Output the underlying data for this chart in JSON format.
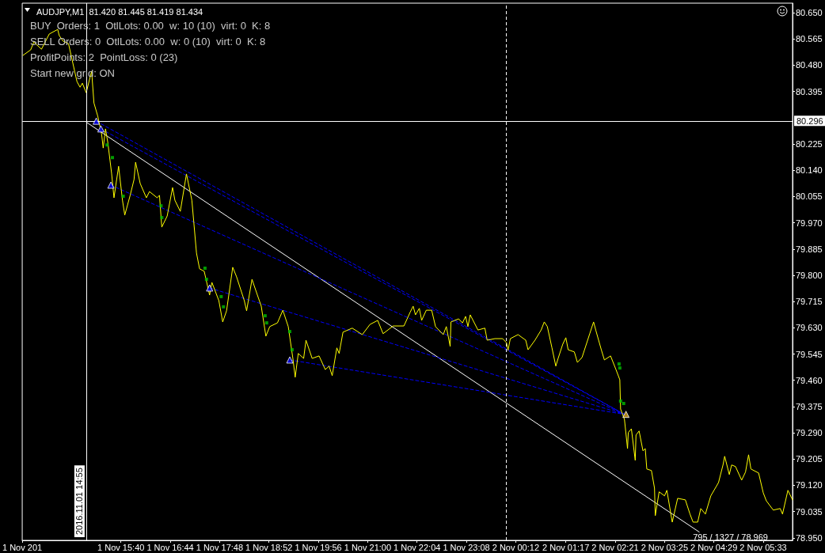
{
  "chart_data": {
    "type": "line",
    "title": "AUDJPY,M1  81.420 81.445 81.419 81.434",
    "annotations": [
      "BUY  Orders: 1  OtlLots: 0.00  w: 10 (10)  virt: 0  K: 8",
      "SELL Orders: 0  OtlLots: 0.00  w: 0 (10)  virt: 0  K: 8",
      "ProfitPoints: 2  PointLoss: 0 (23)",
      "Start new grid: ON",
      {
        "text": "795 / 1327 / 78.969",
        "x": "2016-11-02T04:10",
        "y": 78.969
      }
    ],
    "xlim": [
      "2016-11-01T13:32",
      "2016-11-02T06:11"
    ],
    "xticks": [
      {
        "value": "2016-11-01T13:32",
        "label": "1 Nov 201"
      },
      {
        "value": "2016-11-01T15:40",
        "label": "1 Nov 15:40"
      },
      {
        "value": "2016-11-01T16:44",
        "label": "1 Nov 16:44"
      },
      {
        "value": "2016-11-01T17:48",
        "label": "1 Nov 17:48"
      },
      {
        "value": "2016-11-01T18:52",
        "label": "1 Nov 18:52"
      },
      {
        "value": "2016-11-01T19:56",
        "label": "1 Nov 19:56"
      },
      {
        "value": "2016-11-01T21:00",
        "label": "1 Nov 21:00"
      },
      {
        "value": "2016-11-01T22:04",
        "label": "1 Nov 22:04"
      },
      {
        "value": "2016-11-01T23:08",
        "label": "1 Nov 23:08"
      },
      {
        "value": "2016-11-02T00:12",
        "label": "2 Nov 00:12"
      },
      {
        "value": "2016-11-02T01:17",
        "label": "2 Nov 01:17"
      },
      {
        "value": "2016-11-02T02:21",
        "label": "2 Nov 02:21"
      },
      {
        "value": "2016-11-02T03:25",
        "label": "2 Nov 03:25"
      },
      {
        "value": "2016-11-02T04:29",
        "label": "2 Nov 04:29"
      },
      {
        "value": "2016-11-02T05:33",
        "label": "2 Nov 05:33"
      }
    ],
    "ylim": [
      78.942,
      80.681
    ],
    "yticks": [
      {
        "value": 80.65,
        "label": "80.650"
      },
      80.565,
      {
        "value": 80.48,
        "label": "80.480"
      },
      80.395,
      80.225,
      {
        "value": 80.14,
        "label": "80.140"
      },
      80.055,
      {
        "value": 79.97,
        "label": "79.970"
      },
      79.885,
      {
        "value": 79.8,
        "label": "79.800"
      },
      79.715,
      {
        "value": 79.63,
        "label": "79.630"
      },
      79.545,
      {
        "value": 79.46,
        "label": "79.460"
      },
      79.375,
      {
        "value": 79.29,
        "label": "79.290"
      },
      79.205,
      {
        "value": 79.12,
        "label": "79.120"
      },
      79.035,
      {
        "value": 78.95,
        "label": "78.950"
      }
    ],
    "grid": false,
    "marker": "none",
    "line_style": "solid",
    "ref_lines": [
      {
        "axis": "x",
        "value": "2016-11-01T14:55",
        "label": "2016.11.01 14:55",
        "color": "#ffffff"
      },
      {
        "axis": "y",
        "value": 80.296,
        "label": "80.296",
        "color": "#ffffff"
      },
      {
        "axis": "x",
        "value": "2016-11-02T00:00",
        "color": "#ffffff",
        "line_style": "dashed"
      }
    ],
    "series": [
      {
        "color": "#ffff00",
        "x": [
          "2016-11-01T13:33",
          "2016-11-01T13:43",
          "2016-11-01T13:47",
          "2016-11-01T13:57",
          "2016-11-01T14:07",
          "2016-11-01T14:18",
          "2016-11-01T14:20",
          "2016-11-01T14:25",
          "2016-11-01T14:32",
          "2016-11-01T14:37",
          "2016-11-01T14:43",
          "2016-11-01T14:47",
          "2016-11-01T14:50",
          "2016-11-01T14:55",
          "2016-11-01T15:02",
          "2016-11-01T15:05",
          "2016-11-01T15:10",
          "2016-11-01T15:15",
          "2016-11-01T15:17",
          "2016-11-01T15:20",
          "2016-11-01T15:23",
          "2016-11-01T15:28",
          "2016-11-01T15:31",
          "2016-11-01T15:37",
          "2016-11-01T15:42",
          "2016-11-01T15:45",
          "2016-11-01T15:52",
          "2016-11-01T15:57",
          "2016-11-01T15:59",
          "2016-11-01T16:05",
          "2016-11-01T16:13",
          "2016-11-01T16:17",
          "2016-11-01T16:27",
          "2016-11-01T16:30",
          "2016-11-01T16:33",
          "2016-11-01T16:40",
          "2016-11-01T16:47",
          "2016-11-01T16:50",
          "2016-11-01T16:57",
          "2016-11-01T17:05",
          "2016-11-01T17:12",
          "2016-11-01T17:18",
          "2016-11-01T17:22",
          "2016-11-01T17:28",
          "2016-11-01T17:35",
          "2016-11-01T17:38",
          "2016-11-01T17:47",
          "2016-11-01T17:52",
          "2016-11-01T17:57",
          "2016-11-01T18:05",
          "2016-11-01T18:10",
          "2016-11-01T18:20",
          "2016-11-01T18:23",
          "2016-11-01T18:30",
          "2016-11-01T18:37",
          "2016-11-01T18:42",
          "2016-11-01T18:48",
          "2016-11-01T18:53",
          "2016-11-01T19:03",
          "2016-11-01T19:10",
          "2016-11-01T19:17",
          "2016-11-01T19:23",
          "2016-11-01T19:26",
          "2016-11-01T19:30",
          "2016-11-01T19:37",
          "2016-11-01T19:40",
          "2016-11-01T19:48",
          "2016-11-01T19:57",
          "2016-11-01T20:05",
          "2016-11-01T20:10",
          "2016-11-01T20:14",
          "2016-11-01T20:20",
          "2016-11-01T20:23",
          "2016-11-01T20:28",
          "2016-11-01T20:40",
          "2016-11-01T20:53",
          "2016-11-01T21:03",
          "2016-11-01T21:13",
          "2016-11-01T21:20",
          "2016-11-01T21:33",
          "2016-11-01T21:47",
          "2016-11-01T21:55",
          "2016-11-01T21:59",
          "2016-11-01T22:02",
          "2016-11-01T22:07",
          "2016-11-01T22:10",
          "2016-11-01T22:16",
          "2016-11-01T22:23",
          "2016-11-01T22:28",
          "2016-11-01T22:38",
          "2016-11-01T22:42",
          "2016-11-01T22:47",
          "2016-11-01T22:48",
          "2016-11-01T22:58",
          "2016-11-01T23:03",
          "2016-11-01T23:07",
          "2016-11-01T23:10",
          "2016-11-01T23:13",
          "2016-11-01T23:23",
          "2016-11-01T23:32",
          "2016-11-01T23:35",
          "2016-11-01T23:45",
          "2016-11-01T23:55",
          "2016-11-02T00:00",
          "2016-11-02T00:02",
          "2016-11-02T00:05",
          "2016-11-02T00:15",
          "2016-11-02T00:25",
          "2016-11-02T00:28",
          "2016-11-02T00:37",
          "2016-11-02T00:45",
          "2016-11-02T00:49",
          "2016-11-02T00:53",
          "2016-11-02T00:59",
          "2016-11-02T01:04",
          "2016-11-02T01:07",
          "2016-11-02T01:13",
          "2016-11-02T01:17",
          "2016-11-02T01:20",
          "2016-11-02T01:28",
          "2016-11-02T01:32",
          "2016-11-02T01:38",
          "2016-11-02T01:48",
          "2016-11-02T01:53",
          "2016-11-02T01:56",
          "2016-11-02T02:03",
          "2016-11-02T02:07",
          "2016-11-02T02:15",
          "2016-11-02T02:22",
          "2016-11-02T02:27",
          "2016-11-02T02:28",
          "2016-11-02T02:33",
          "2016-11-02T02:37",
          "2016-11-02T02:38",
          "2016-11-02T02:42",
          "2016-11-02T02:47",
          "2016-11-02T02:48",
          "2016-11-02T02:52",
          "2016-11-02T02:57",
          "2016-11-02T03:00",
          "2016-11-02T03:02",
          "2016-11-02T03:08",
          "2016-11-02T03:12",
          "2016-11-02T03:13",
          "2016-11-02T03:18",
          "2016-11-02T03:25",
          "2016-11-02T03:28",
          "2016-11-02T03:35",
          "2016-11-02T03:42",
          "2016-11-02T03:52",
          "2016-11-02T03:58",
          "2016-11-02T04:02",
          "2016-11-02T04:08",
          "2016-11-02T04:12",
          "2016-11-02T04:18",
          "2016-11-02T04:25",
          "2016-11-02T04:35",
          "2016-11-02T04:41",
          "2016-11-02T04:43",
          "2016-11-02T04:49",
          "2016-11-02T04:52",
          "2016-11-02T04:57",
          "2016-11-02T05:05",
          "2016-11-02T05:10",
          "2016-11-02T05:14",
          "2016-11-02T05:17",
          "2016-11-02T05:27",
          "2016-11-02T05:33",
          "2016-11-02T05:37",
          "2016-11-02T05:46",
          "2016-11-02T05:55",
          "2016-11-02T05:58",
          "2016-11-02T06:05",
          "2016-11-02T06:11"
        ],
        "values": [
          80.512,
          80.53,
          80.555,
          80.532,
          80.581,
          80.596,
          80.576,
          80.558,
          80.55,
          80.494,
          80.427,
          80.409,
          80.422,
          80.391,
          80.461,
          80.358,
          80.315,
          80.256,
          80.212,
          80.274,
          80.23,
          80.128,
          80.051,
          80.153,
          80.043,
          79.995,
          80.059,
          80.11,
          80.166,
          80.097,
          80.051,
          80.071,
          80.051,
          80.059,
          79.956,
          79.992,
          80.084,
          80.043,
          80.007,
          80.128,
          80.043,
          79.872,
          79.821,
          79.813,
          79.736,
          79.777,
          79.718,
          79.649,
          79.685,
          79.826,
          79.795,
          79.718,
          79.685,
          79.787,
          79.736,
          79.7,
          79.603,
          79.634,
          79.646,
          79.687,
          79.634,
          79.531,
          79.47,
          79.547,
          79.531,
          79.59,
          79.531,
          79.539,
          79.495,
          79.506,
          79.475,
          79.565,
          79.547,
          79.616,
          79.629,
          79.608,
          79.641,
          79.654,
          79.611,
          79.636,
          79.636,
          79.68,
          79.7,
          79.672,
          79.693,
          79.654,
          79.687,
          79.687,
          79.634,
          79.608,
          79.634,
          79.57,
          79.649,
          79.659,
          79.646,
          79.667,
          79.634,
          79.672,
          79.623,
          79.629,
          79.59,
          79.595,
          79.595,
          79.582,
          79.557,
          79.595,
          79.608,
          79.59,
          79.559,
          79.59,
          79.623,
          79.649,
          79.634,
          79.565,
          79.506,
          79.531,
          79.577,
          79.598,
          79.559,
          79.552,
          79.518,
          79.534,
          79.611,
          79.649,
          79.621,
          79.559,
          79.526,
          79.539,
          79.495,
          79.462,
          79.367,
          79.334,
          79.239,
          79.291,
          79.303,
          79.201,
          79.283,
          79.296,
          79.232,
          79.239,
          79.173,
          79.168,
          79.111,
          79.022,
          79.099,
          79.086,
          79.104,
          79.001,
          79.078,
          79.073,
          79.027,
          79.001,
          79.001,
          79.045,
          79.027,
          79.086,
          79.129,
          79.188,
          79.214,
          79.155,
          79.186,
          79.181,
          79.137,
          79.163,
          79.219,
          79.173,
          79.16,
          79.096,
          79.07,
          79.04,
          79.045,
          79.027,
          79.104,
          79.073
        ]
      },
      {
        "color": "#ffffff",
        "x": [
          "2016-11-01T14:55",
          "2016-11-02T04:10"
        ],
        "values": [
          80.296,
          78.969
        ]
      },
      {
        "color": "#0000ff",
        "line_style": "dashed",
        "x": [
          "2016-11-01T15:08",
          "2016-11-02T02:33"
        ],
        "values": [
          80.299,
          79.35
        ]
      },
      {
        "color": "#0000ff",
        "line_style": "dashed",
        "x": [
          "2016-11-01T15:14",
          "2016-11-02T02:33"
        ],
        "values": [
          80.274,
          79.35
        ]
      },
      {
        "color": "#0000ff",
        "line_style": "dashed",
        "x": [
          "2016-11-01T15:27",
          "2016-11-02T02:33"
        ],
        "values": [
          80.092,
          79.35
        ]
      },
      {
        "color": "#0000ff",
        "line_style": "dashed",
        "x": [
          "2016-11-01T17:35",
          "2016-11-02T02:33"
        ],
        "values": [
          79.759,
          79.35
        ]
      },
      {
        "color": "#0000ff",
        "line_style": "dashed",
        "x": [
          "2016-11-01T19:19",
          "2016-11-02T02:33"
        ],
        "values": [
          79.526,
          79.35
        ]
      },
      {
        "type": "scatter",
        "color": "#0000ff",
        "marker": "triangle",
        "x": [
          "2016-11-01T15:08",
          "2016-11-01T15:14",
          "2016-11-01T15:27",
          "2016-11-01T17:35",
          "2016-11-01T19:19"
        ],
        "values": [
          80.299,
          80.274,
          80.092,
          79.759,
          79.526
        ]
      },
      {
        "type": "scatter",
        "color": "#daa520",
        "marker": "triangle",
        "x": [
          "2016-11-02T02:35"
        ],
        "values": [
          79.35
        ]
      },
      {
        "type": "scatter",
        "color": "#00c000",
        "marker": "square",
        "x": [
          "2016-11-01T15:22",
          "2016-11-01T15:29",
          "2016-11-01T15:43",
          "2016-11-01T16:32",
          "2016-11-01T16:33",
          "2016-11-01T17:29",
          "2016-11-01T17:31",
          "2016-11-01T17:50",
          "2016-11-01T17:53",
          "2016-11-01T18:47",
          "2016-11-01T18:49",
          "2016-11-01T19:19",
          "2016-11-01T19:22",
          "2016-11-02T02:26",
          "2016-11-02T02:27",
          "2016-11-02T02:28",
          "2016-11-02T02:32"
        ],
        "values": [
          80.222,
          80.181,
          80.056,
          80.025,
          79.987,
          79.823,
          79.787,
          79.731,
          79.698,
          79.669,
          79.646,
          79.618,
          79.559,
          79.513,
          79.5,
          79.393,
          79.385
        ]
      }
    ]
  }
}
